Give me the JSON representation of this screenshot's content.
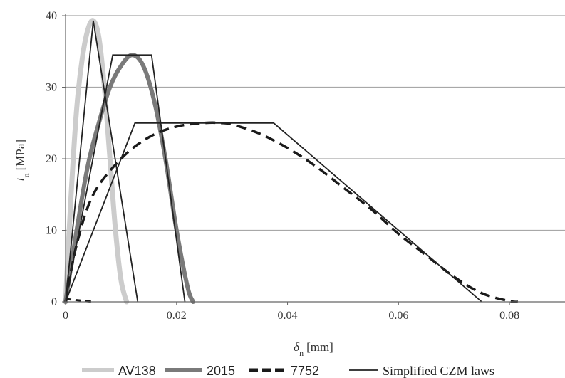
{
  "chart_data": {
    "type": "line",
    "xlabel": "δn [mm]",
    "xlabel_main": "δ",
    "xlabel_sub": "n",
    "xlabel_unit": "[mm]",
    "ylabel": "tn [MPa]",
    "ylabel_main": "t",
    "ylabel_sub": "n",
    "ylabel_unit": "[MPa]",
    "xlim": [
      0,
      0.09
    ],
    "ylim": [
      0,
      40
    ],
    "xticks": [
      0,
      0.02,
      0.04,
      0.06,
      0.08
    ],
    "xtick_labels": [
      "0",
      "0.02",
      "0.04",
      "0.06",
      "0.08"
    ],
    "yticks": [
      0,
      10,
      20,
      30,
      40
    ],
    "ytick_labels": [
      "0",
      "10",
      "20",
      "30",
      "40"
    ],
    "grid": "horizontal",
    "legend_position": "bottom",
    "series": [
      {
        "name": "AV138",
        "style": "thick-light-gray",
        "color": "#cccccc",
        "x": [
          0,
          0.001,
          0.002,
          0.003,
          0.004,
          0.005,
          0.006,
          0.007,
          0.008,
          0.009,
          0.01,
          0.011
        ],
        "y": [
          0,
          15,
          27,
          34,
          38,
          39.3,
          37,
          30,
          20,
          10,
          3,
          0
        ]
      },
      {
        "name": "2015",
        "style": "thick-gray",
        "color": "#7a7a7a",
        "x": [
          0,
          0.002,
          0.004,
          0.006,
          0.008,
          0.01,
          0.012,
          0.014,
          0.016,
          0.018,
          0.02,
          0.022,
          0.023
        ],
        "y": [
          0,
          10,
          19,
          25,
          30,
          33,
          34.5,
          33,
          28,
          20,
          10,
          2,
          0
        ]
      },
      {
        "name": "7752",
        "style": "thick-dashed-black",
        "color": "#1a1a1a",
        "x": [
          0,
          0.002,
          0.005,
          0.01,
          0.015,
          0.02,
          0.025,
          0.028,
          0.03,
          0.035,
          0.04,
          0.045,
          0.05,
          0.055,
          0.06,
          0.065,
          0.07,
          0.075,
          0.08,
          0.0815
        ],
        "y": [
          0,
          8,
          15,
          20,
          23,
          24.5,
          25,
          25,
          24.8,
          23.5,
          21.5,
          19,
          16,
          13,
          9.5,
          6.5,
          3.5,
          1.2,
          0.1,
          0
        ]
      },
      {
        "name": "Simplified CZM laws",
        "style": "thin-black",
        "color": "#222222",
        "segments": [
          {
            "x": [
              0,
              0.005,
              0.013
            ],
            "y": [
              0,
              39.3,
              0
            ]
          },
          {
            "x": [
              0,
              0.0085,
              0.0155,
              0.0215
            ],
            "y": [
              0,
              34.5,
              34.5,
              0
            ]
          },
          {
            "x": [
              0,
              0.0125,
              0.0375,
              0.075
            ],
            "y": [
              0,
              25,
              25,
              0
            ]
          }
        ]
      }
    ],
    "extra_marks": {
      "small_dashed_near_origin": {
        "x": [
          0,
          0.005
        ],
        "y": [
          0.4,
          0
        ]
      }
    }
  },
  "legend": {
    "items": [
      {
        "label": "AV138"
      },
      {
        "label": "2015"
      },
      {
        "label": "7752"
      },
      {
        "label": "Simplified CZM laws"
      }
    ]
  }
}
